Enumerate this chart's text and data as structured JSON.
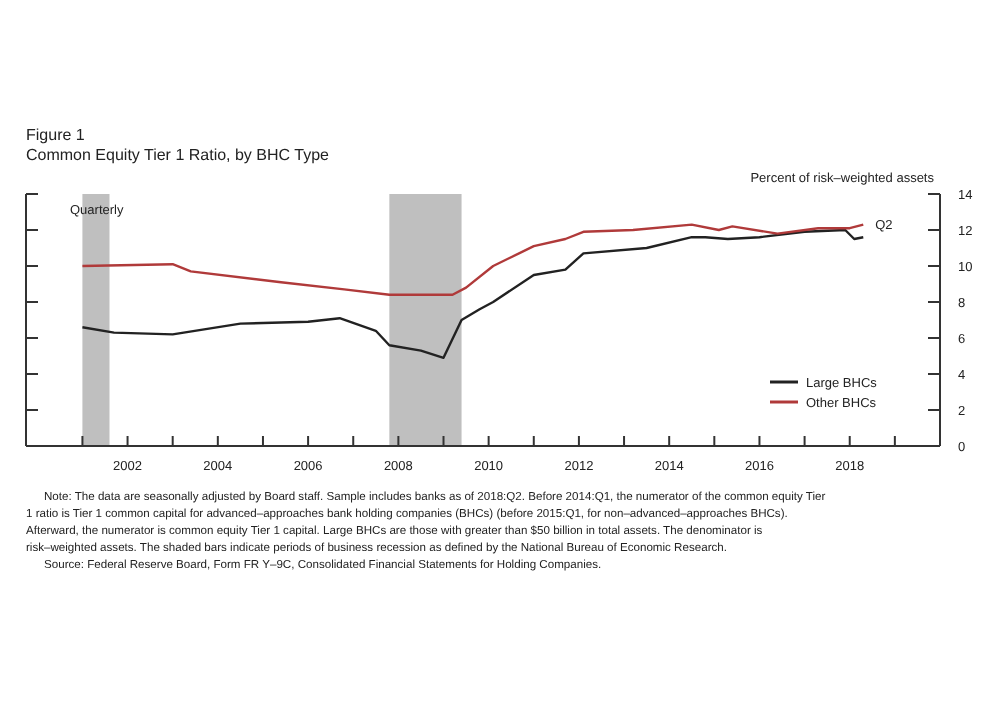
{
  "chart_data": {
    "type": "line",
    "title": "Figure 1",
    "subtitle": "Common Equity Tier 1 Ratio, by BHC Type",
    "ylabel": "Percent of risk–weighted assets",
    "xlim": [
      1999.75,
      2020
    ],
    "xticks": [
      {
        "value": 2001,
        "label": null
      },
      2002,
      {
        "value": 2003,
        "label": null
      },
      2004,
      {
        "value": 2005,
        "label": null
      },
      2006,
      {
        "value": 2007,
        "label": null
      },
      2008,
      {
        "value": 2009,
        "label": null
      },
      2010,
      {
        "value": 2011,
        "label": null
      },
      2012,
      {
        "value": 2013,
        "label": null
      },
      2014,
      {
        "value": 2015,
        "label": null
      },
      2016,
      {
        "value": 2017,
        "label": null
      },
      2018,
      {
        "value": 2019,
        "label": null
      }
    ],
    "ylim": [
      0,
      14
    ],
    "yticks": [
      0,
      2,
      4,
      6,
      8,
      10,
      12,
      14
    ],
    "grid": false,
    "legend": "bottom right",
    "series": [
      {
        "name": "Large BHCs",
        "color": "#222222",
        "x": [
          2001.0,
          2001.7,
          2003.0,
          2004.5,
          2006.0,
          2006.7,
          2007.5,
          2007.8,
          2008.5,
          2009.0,
          2009.4,
          2009.8,
          2010.1,
          2011.0,
          2011.7,
          2012.1,
          2013.5,
          2014.5,
          2014.8,
          2015.3,
          2016.0,
          2017.0,
          2017.9,
          2018.1,
          2018.3
        ],
        "values": [
          6.6,
          6.3,
          6.2,
          6.8,
          6.9,
          7.1,
          6.4,
          5.6,
          5.3,
          4.9,
          7.0,
          7.6,
          8.0,
          9.5,
          9.8,
          10.7,
          11.0,
          11.6,
          11.6,
          11.5,
          11.6,
          11.9,
          12.0,
          11.5,
          11.6
        ]
      },
      {
        "name": "Other BHCs",
        "color": "#b03a3a",
        "x": [
          2001.0,
          2003.0,
          2003.4,
          2005.4,
          2006.8,
          2007.8,
          2009.2,
          2009.5,
          2010.1,
          2011.0,
          2011.7,
          2012.1,
          2013.2,
          2014.5,
          2015.1,
          2015.4,
          2016.4,
          2017.3,
          2018.0,
          2018.3
        ],
        "values": [
          10.0,
          10.1,
          9.7,
          9.1,
          8.7,
          8.4,
          8.4,
          8.8,
          10.0,
          11.1,
          11.5,
          11.9,
          12.0,
          12.3,
          12.0,
          12.2,
          11.8,
          12.1,
          12.1,
          12.3
        ]
      }
    ],
    "bands": [
      {
        "axis": "x",
        "from": 2001.0,
        "to": 2001.6,
        "color": "#bfbfbf"
      },
      {
        "axis": "x",
        "from": 2007.8,
        "to": 2009.4,
        "color": "#bfbfbf"
      }
    ],
    "annotations": [
      {
        "text": "Quarterly"
      },
      {
        "text": "Q2",
        "x": 2018.3,
        "y": 12.3
      },
      "Note: The data are seasonally adjusted by Board staff. Sample includes banks as of 2018:Q2.  Before 2014:Q1, the numerator of the common equity Tier 1 ratio is Tier 1 common capital for advanced–approaches bank holding companies (BHCs) (before 2015:Q1, for non–advanced–approaches BHCs).  Afterward, the numerator is common equity Tier 1 capital. Large BHCs are those with greater than $50 billion in total assets. The denominator is risk–weighted assets. The shaded bars indicate periods of business recession as defined by the National Bureau of Economic Research.",
      "Source:  Federal Reserve Board, Form FR Y–9C, Consolidated Financial Statements for Holding Companies."
    ]
  }
}
